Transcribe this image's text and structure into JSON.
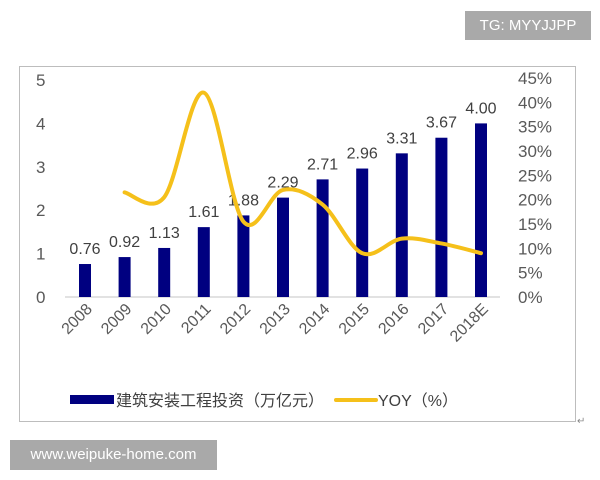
{
  "watermarks": {
    "top_right": "TG: MYYJJPP",
    "bottom_left": "www.weipuke-home.com"
  },
  "colors": {
    "bar": "#000080",
    "line": "#f5c01a",
    "axis": "#d9d9d9",
    "tick_text": "#595959"
  },
  "chart_data": {
    "type": "bar+line",
    "title": "",
    "categories": [
      "2008",
      "2009",
      "2010",
      "2011",
      "2012",
      "2013",
      "2014",
      "2015",
      "2016",
      "2017",
      "2018E"
    ],
    "series": [
      {
        "name": "建筑安装工程投资（万亿元）",
        "type": "bar",
        "axis": "left",
        "values": [
          0.76,
          0.92,
          1.13,
          1.61,
          1.88,
          2.29,
          2.71,
          2.96,
          3.31,
          3.67,
          4.0
        ],
        "labels": [
          "0.76",
          "0.92",
          "1.13",
          "1.61",
          "1.88",
          "2.29",
          "2.71",
          "2.96",
          "3.31",
          "3.67",
          "4.00"
        ]
      },
      {
        "name": "YOY（%）",
        "type": "line",
        "axis": "right",
        "values": [
          null,
          21.5,
          20.5,
          42,
          15.5,
          22,
          19,
          9,
          12,
          11,
          9
        ]
      }
    ],
    "left_axis": {
      "ylim": [
        0,
        5
      ],
      "ticks": [
        "0",
        "1",
        "2",
        "3",
        "4",
        "5"
      ]
    },
    "right_axis": {
      "ylim": [
        0,
        45
      ],
      "ticks": [
        "0%",
        "5%",
        "10%",
        "15%",
        "20%",
        "25%",
        "30%",
        "35%",
        "40%",
        "45%"
      ]
    },
    "xlabel": "",
    "ylabel": "",
    "grid": false,
    "legend": {
      "position": "bottom",
      "items": [
        "建筑安装工程投资（万亿元）",
        "YOY（%）"
      ]
    }
  }
}
